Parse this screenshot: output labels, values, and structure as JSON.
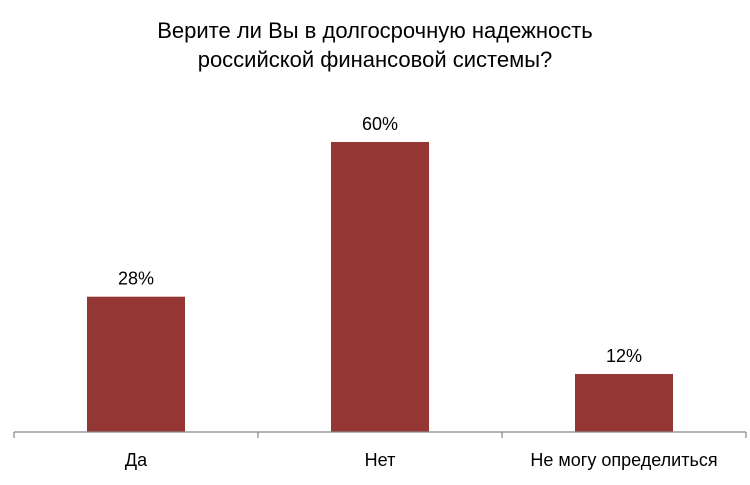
{
  "chart_data": {
    "type": "bar",
    "title": "Верите ли Вы в долгосрочную надежность российской финансовой системы?",
    "title_lines": [
      "Верите ли Вы в долгосрочную надежность",
      "российской финансовой системы?"
    ],
    "categories": [
      "Да",
      "Нет",
      "Не могу определиться"
    ],
    "values": [
      28,
      60,
      12
    ],
    "value_labels": [
      "28%",
      "60%",
      "12%"
    ],
    "unit": "%",
    "ylim": [
      0,
      70
    ],
    "xlabel": "",
    "ylabel": "",
    "grid": false,
    "legend": "none",
    "bar_color": "#943634",
    "axis_color": "#868686"
  }
}
